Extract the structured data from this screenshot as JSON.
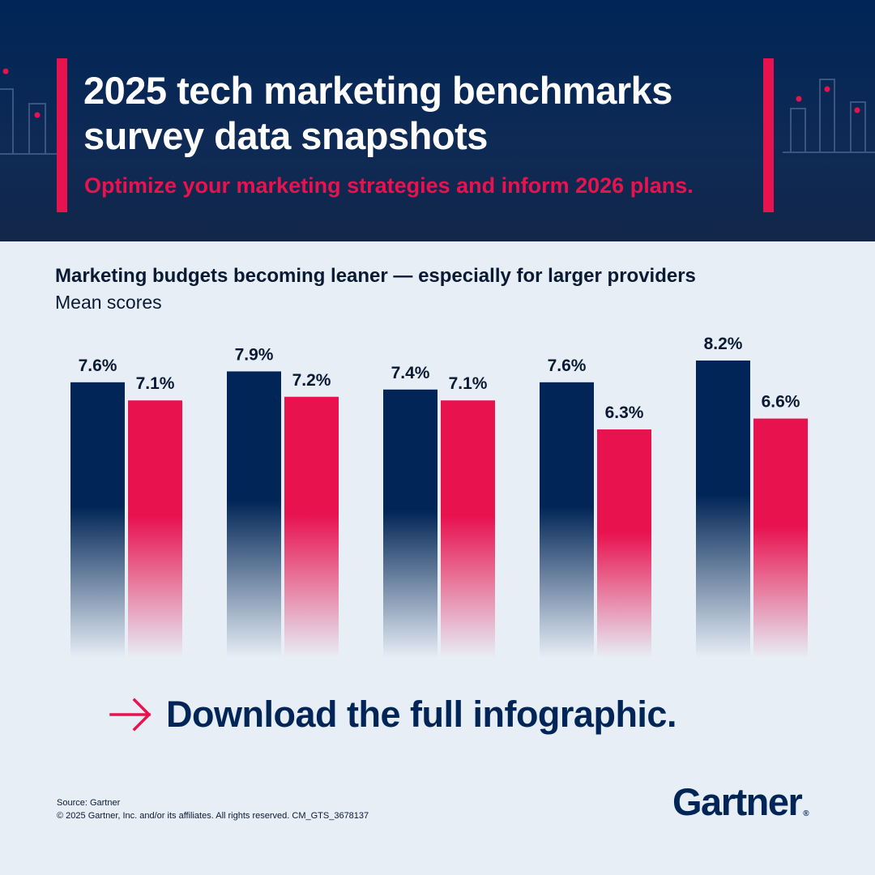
{
  "header": {
    "title_line1": "2025 tech marketing benchmarks",
    "title_line2": "survey data snapshots",
    "subtitle": "Optimize your marketing strategies and inform 2026 plans."
  },
  "chart_data": {
    "type": "bar",
    "title": "Marketing budgets becoming leaner — especially for larger providers",
    "subtitle": "Mean scores",
    "categories": [
      "",
      "",
      "",
      "",
      ""
    ],
    "series": [
      {
        "values": [
          7.6,
          7.9,
          7.4,
          7.6,
          8.2
        ],
        "labels": [
          "7.6%",
          "7.9%",
          "7.4%",
          "7.6%",
          "8.2%"
        ],
        "color": "#002556"
      },
      {
        "values": [
          7.1,
          7.2,
          7.1,
          6.3,
          6.6
        ],
        "labels": [
          "7.1%",
          "7.2%",
          "7.1%",
          "6.3%",
          "6.6%"
        ],
        "color": "#e8124f"
      }
    ],
    "legend": "none",
    "grid": false
  },
  "cta": {
    "label": "Download the full infographic.",
    "icon": "arrow-right-icon",
    "accent_color": "#e8124f"
  },
  "footer": {
    "source": "Source: Gartner",
    "copyright": "© 2025 Gartner, Inc. and/or its affiliates. All rights reserved. CM_GTS_3678137"
  },
  "logo": {
    "text": "Gartner",
    "mark": "®"
  },
  "colors": {
    "navy": "#002556",
    "pink": "#e8124f",
    "background": "#e7eef6"
  }
}
